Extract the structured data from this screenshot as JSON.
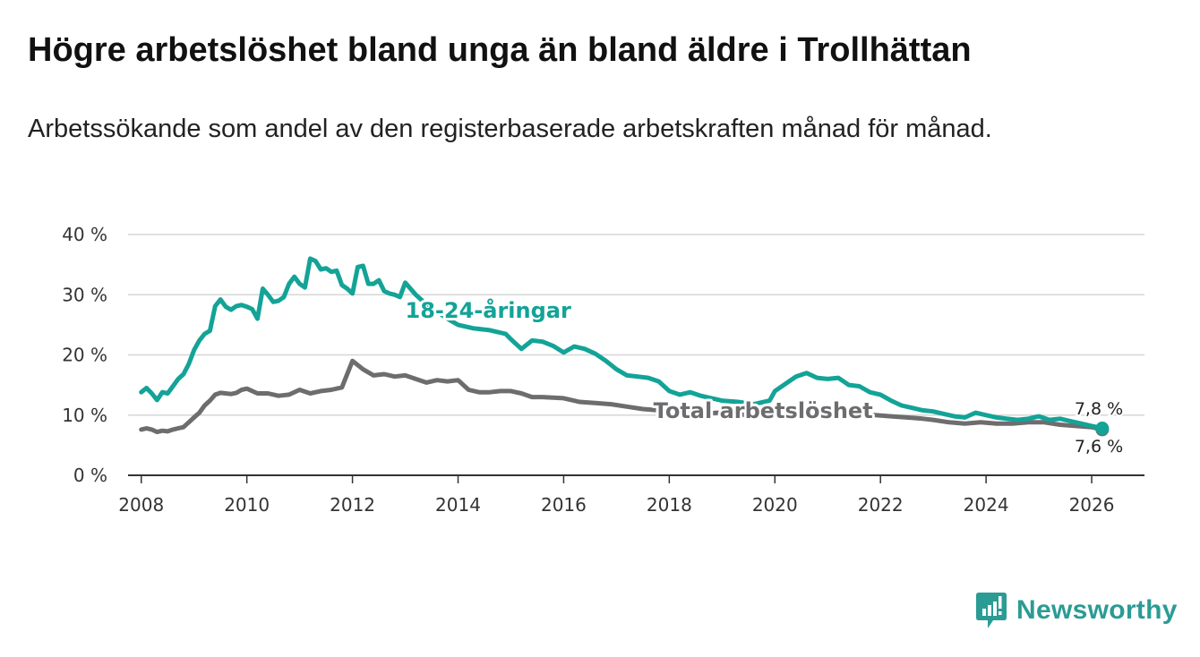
{
  "title": "Högre arbetslöshet bland unga än bland äldre i Trollhättan",
  "subtitle": "Arbetssökande som andel av den registerbaserade arbetskraften månad för månad.",
  "brand": {
    "name": "Newsworthy",
    "icon": "newsworthy-logo-icon",
    "color": "#2a9c94"
  },
  "chart_data": {
    "type": "line",
    "title": "Högre arbetslöshet bland unga än bland äldre i Trollhättan",
    "xlabel": "",
    "ylabel": "",
    "ylim": [
      0,
      40
    ],
    "xlim": [
      2007.75,
      2027.0
    ],
    "yticks": [
      0,
      10,
      20,
      30,
      40
    ],
    "ytick_labels": [
      "0 %",
      "10 %",
      "20 %",
      "30 %",
      "40 %"
    ],
    "xticks": [
      2008,
      2010,
      2012,
      2014,
      2016,
      2018,
      2020,
      2022,
      2024,
      2026
    ],
    "xtick_labels": [
      "2008",
      "2010",
      "2012",
      "2014",
      "2016",
      "2018",
      "2020",
      "2022",
      "2024",
      "2026"
    ],
    "grid": true,
    "series": [
      {
        "name": "18-24-åringar",
        "color": "#13a397",
        "end_value_label": "7,8 %",
        "x": [
          2008.0,
          2008.1,
          2008.2,
          2008.3,
          2008.4,
          2008.5,
          2008.6,
          2008.7,
          2008.8,
          2008.9,
          2009.0,
          2009.1,
          2009.2,
          2009.3,
          2009.4,
          2009.5,
          2009.6,
          2009.7,
          2009.8,
          2009.9,
          2010.0,
          2010.1,
          2010.2,
          2010.3,
          2010.4,
          2010.5,
          2010.6,
          2010.7,
          2010.8,
          2010.9,
          2011.0,
          2011.1,
          2011.2,
          2011.3,
          2011.4,
          2011.5,
          2011.6,
          2011.7,
          2011.8,
          2011.9,
          2012.0,
          2012.1,
          2012.2,
          2012.3,
          2012.4,
          2012.5,
          2012.6,
          2012.7,
          2012.8,
          2012.9,
          2013.0,
          2013.2,
          2013.4,
          2013.6,
          2013.8,
          2014.0,
          2014.3,
          2014.6,
          2014.9,
          2015.0,
          2015.2,
          2015.4,
          2015.6,
          2015.8,
          2016.0,
          2016.2,
          2016.4,
          2016.6,
          2016.8,
          2017.0,
          2017.2,
          2017.4,
          2017.6,
          2017.8,
          2018.0,
          2018.2,
          2018.4,
          2018.6,
          2018.8,
          2019.0,
          2019.3,
          2019.6,
          2019.9,
          2020.0,
          2020.2,
          2020.4,
          2020.6,
          2020.8,
          2021.0,
          2021.2,
          2021.4,
          2021.6,
          2021.8,
          2022.0,
          2022.2,
          2022.4,
          2022.6,
          2022.8,
          2023.0,
          2023.2,
          2023.4,
          2023.6,
          2023.8,
          2024.0,
          2024.2,
          2024.4,
          2024.6,
          2024.8,
          2025.0,
          2025.2,
          2025.4,
          2025.6,
          2025.8,
          2026.0,
          2026.2
        ],
        "values": [
          13.8,
          14.5,
          13.6,
          12.5,
          13.8,
          13.6,
          14.8,
          16.0,
          16.8,
          18.5,
          20.8,
          22.4,
          23.5,
          24.0,
          28.1,
          29.2,
          28.0,
          27.5,
          28.1,
          28.3,
          28.0,
          27.6,
          26.0,
          31.0,
          30.0,
          28.8,
          29.0,
          29.6,
          31.8,
          33.0,
          31.8,
          31.2,
          36.0,
          35.6,
          34.2,
          34.4,
          33.8,
          34.0,
          31.6,
          31.0,
          30.2,
          34.6,
          34.8,
          31.8,
          31.8,
          32.4,
          30.6,
          30.2,
          30.0,
          29.6,
          32.0,
          30.0,
          28.4,
          27.2,
          26.0,
          25.0,
          24.4,
          24.1,
          23.5,
          22.6,
          21.0,
          22.4,
          22.2,
          21.5,
          20.4,
          21.4,
          21.0,
          20.2,
          19.0,
          17.6,
          16.6,
          16.4,
          16.2,
          15.6,
          14.0,
          13.4,
          13.8,
          13.2,
          12.8,
          12.4,
          12.2,
          11.8,
          12.4,
          14.0,
          15.2,
          16.4,
          17.0,
          16.2,
          16.0,
          16.2,
          15.0,
          14.8,
          13.8,
          13.4,
          12.4,
          11.6,
          11.2,
          10.8,
          10.6,
          10.2,
          9.8,
          9.6,
          10.4,
          10.0,
          9.6,
          9.4,
          9.2,
          9.4,
          9.8,
          9.2,
          9.4,
          9.0,
          8.6,
          8.2,
          7.8
        ]
      },
      {
        "name": "Total arbetslöshet",
        "color": "#6d6d70",
        "end_value_label": "7,6 %",
        "x": [
          2008.0,
          2008.1,
          2008.2,
          2008.3,
          2008.4,
          2008.5,
          2008.6,
          2008.7,
          2008.8,
          2008.9,
          2009.0,
          2009.1,
          2009.2,
          2009.3,
          2009.4,
          2009.5,
          2009.6,
          2009.7,
          2009.8,
          2009.9,
          2010.0,
          2010.2,
          2010.4,
          2010.6,
          2010.8,
          2011.0,
          2011.2,
          2011.4,
          2011.6,
          2011.8,
          2012.0,
          2012.2,
          2012.4,
          2012.6,
          2012.8,
          2013.0,
          2013.2,
          2013.4,
          2013.6,
          2013.8,
          2014.0,
          2014.2,
          2014.4,
          2014.6,
          2014.8,
          2015.0,
          2015.2,
          2015.4,
          2015.6,
          2015.8,
          2016.0,
          2016.3,
          2016.6,
          2016.9,
          2017.2,
          2017.5,
          2017.8,
          2018.0,
          2018.3,
          2018.6,
          2018.9,
          2019.2,
          2019.5,
          2019.8,
          2020.0,
          2020.2,
          2020.4,
          2020.6,
          2020.8,
          2021.0,
          2021.3,
          2021.6,
          2021.9,
          2022.2,
          2022.5,
          2022.8,
          2023.0,
          2023.3,
          2023.6,
          2023.9,
          2024.2,
          2024.5,
          2024.8,
          2025.1,
          2025.4,
          2025.7,
          2026.0,
          2026.2
        ],
        "values": [
          7.6,
          7.8,
          7.6,
          7.2,
          7.4,
          7.3,
          7.6,
          7.8,
          8.0,
          8.8,
          9.6,
          10.4,
          11.6,
          12.4,
          13.4,
          13.7,
          13.6,
          13.5,
          13.7,
          14.2,
          14.4,
          13.6,
          13.6,
          13.2,
          13.4,
          14.2,
          13.6,
          14.0,
          14.2,
          14.6,
          19.0,
          17.6,
          16.6,
          16.8,
          16.4,
          16.6,
          16.0,
          15.4,
          15.8,
          15.6,
          15.8,
          14.2,
          13.8,
          13.8,
          14.0,
          14.0,
          13.6,
          13.0,
          13.0,
          12.9,
          12.8,
          12.2,
          12.0,
          11.8,
          11.4,
          11.0,
          10.8,
          10.8,
          10.6,
          10.2,
          10.4,
          10.2,
          10.0,
          10.2,
          10.8,
          11.0,
          11.2,
          11.0,
          10.8,
          10.6,
          10.4,
          10.2,
          10.0,
          9.8,
          9.6,
          9.4,
          9.2,
          8.8,
          8.6,
          8.8,
          8.6,
          8.6,
          8.8,
          8.8,
          8.4,
          8.2,
          8.0,
          7.6
        ]
      }
    ]
  }
}
